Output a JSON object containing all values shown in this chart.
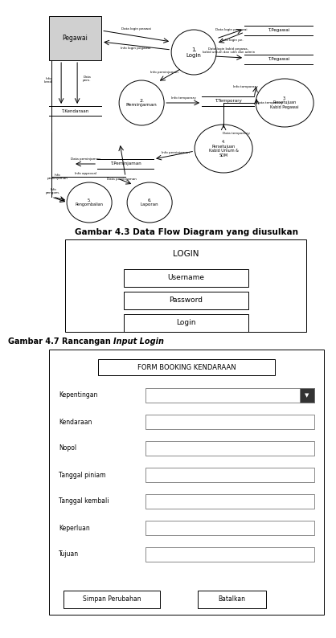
{
  "fig_width": 3.52,
  "fig_height": 7.74,
  "bg_color": "#ffffff",
  "dfd_caption": "Gambar 4.3 Data Flow Diagram yang diusulkan",
  "login_caption_normal": "Gambar 4.7 Rancangan ",
  "login_caption_italic": "Input Login",
  "login_title": "LOGIN",
  "login_buttons": [
    "Username",
    "Password",
    "Login"
  ],
  "form_title": "FORM BOOKING KENDARAAN",
  "form_fields": [
    {
      "label": "Kepentingan",
      "dropdown": true
    },
    {
      "label": "Kendaraan",
      "dropdown": false
    },
    {
      "label": "Nopol",
      "dropdown": false
    },
    {
      "label": "Tanggal piniam",
      "dropdown": false
    },
    {
      "label": "Tanggal kembali",
      "dropdown": false
    },
    {
      "label": "Keperluan",
      "dropdown": false
    },
    {
      "label": "Tujuan",
      "dropdown": false
    }
  ],
  "form_buttons": [
    "Simpan Perubahan",
    "Batalkan"
  ]
}
